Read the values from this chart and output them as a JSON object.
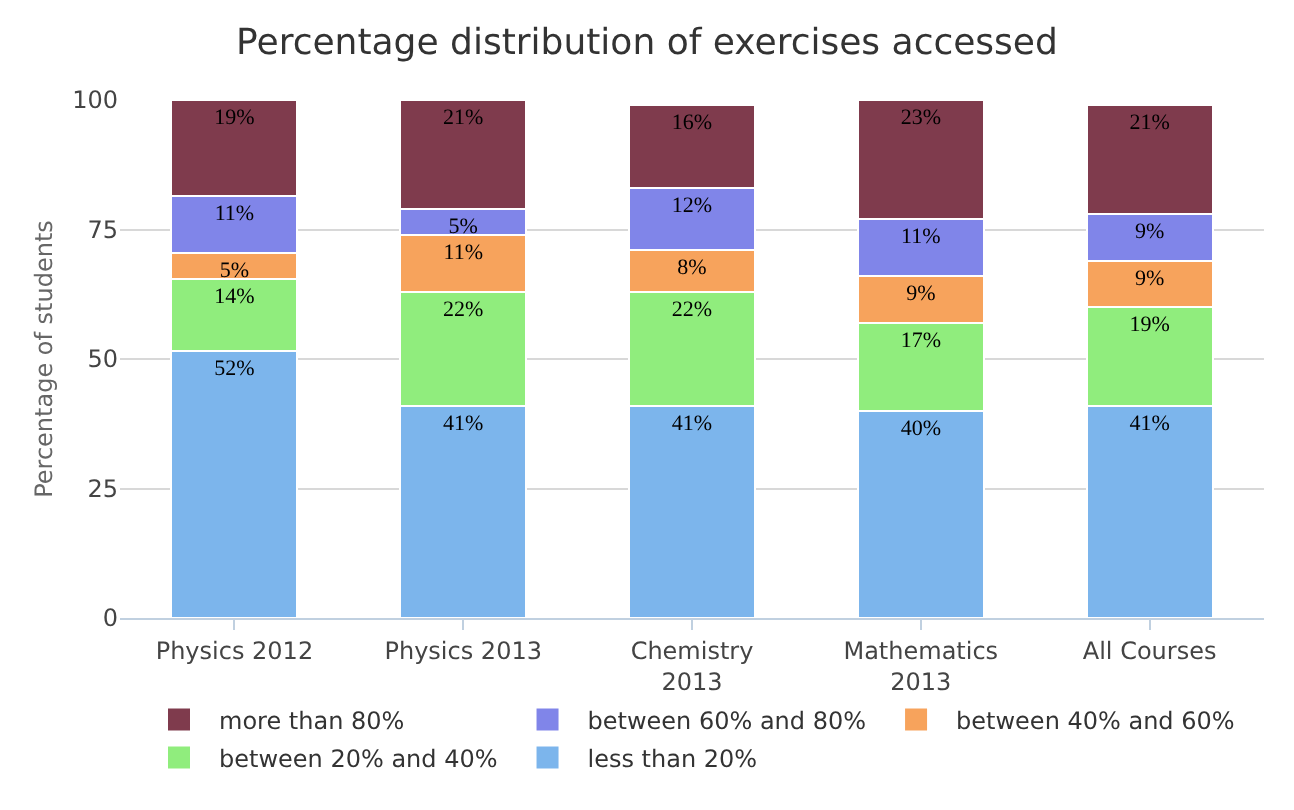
{
  "chart_data": {
    "type": "bar",
    "title": "Percentage distribution of exercises accessed",
    "ylabel": "Percentage of students",
    "categories": [
      "Physics 2012",
      "Physics 2013",
      "Chemistry 2013",
      "Mathematics 2013",
      "All Courses"
    ],
    "stacked": true,
    "ylim": [
      0,
      100
    ],
    "yticks": [
      0,
      25,
      50,
      75,
      100
    ],
    "grid": "y",
    "legend": "bottom",
    "series": [
      {
        "name": "less than 20%",
        "color": "#7cb5ec",
        "values": [
          51.5,
          41,
          41,
          40,
          41
        ],
        "value_labels": [
          "52%",
          "41%",
          "41%",
          "40%",
          "41%"
        ]
      },
      {
        "name": "between 20% and 40%",
        "color": "#90ed7d",
        "values": [
          14,
          22,
          22,
          17,
          19
        ],
        "value_labels": [
          "14%",
          "22%",
          "22%",
          "17%",
          "19%"
        ]
      },
      {
        "name": "between 40% and 60%",
        "color": "#f7a35c",
        "values": [
          5,
          11,
          8,
          9,
          9
        ],
        "value_labels": [
          "5%",
          "11%",
          "8%",
          "9%",
          "9%"
        ]
      },
      {
        "name": "between 60% and 80%",
        "color": "#8085e9",
        "values": [
          11,
          5,
          12,
          11,
          9
        ],
        "value_labels": [
          "11%",
          "5%",
          "12%",
          "11%",
          "9%"
        ]
      },
      {
        "name": "more than 80%",
        "color": "#7f3b4d",
        "values": [
          18.5,
          21,
          16,
          23,
          21
        ],
        "value_labels": [
          "19%",
          "21%",
          "16%",
          "23%",
          "21%"
        ]
      }
    ]
  }
}
